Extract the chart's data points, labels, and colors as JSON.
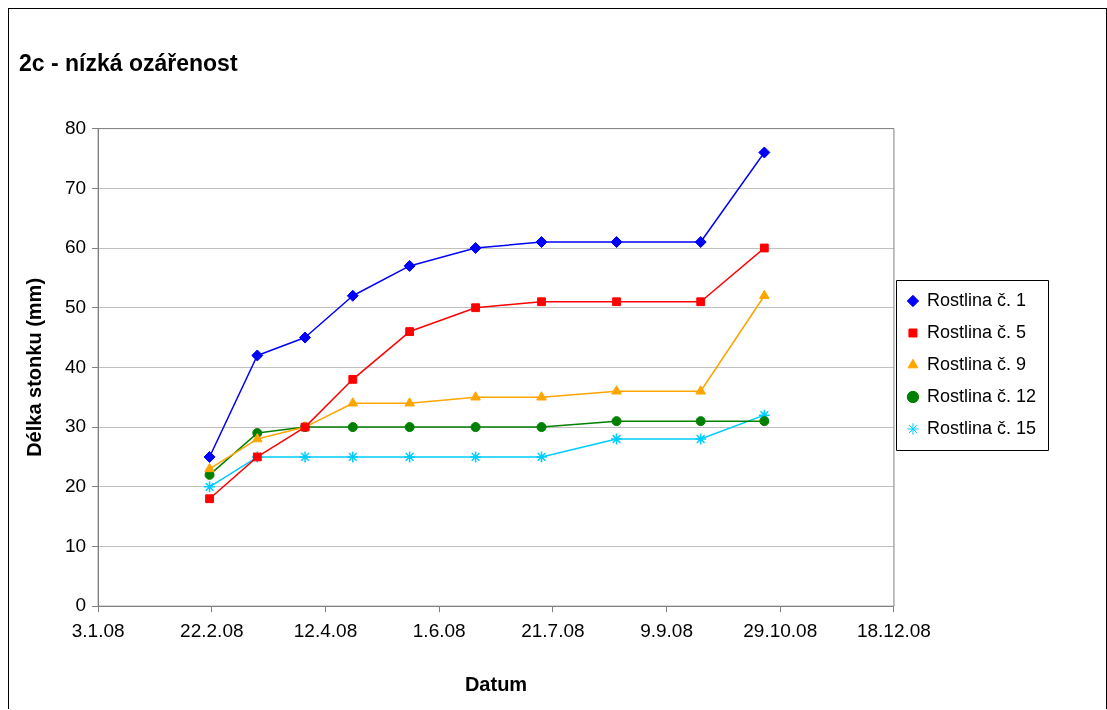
{
  "chart_data": {
    "type": "line",
    "title": "2c - nízká ozářenost",
    "xlabel": "Datum",
    "ylabel": "Délka stonku (mm)",
    "x": [
      "2008-02-21",
      "2008-03-13",
      "2008-04-03",
      "2008-04-24",
      "2008-05-19",
      "2008-06-17",
      "2008-07-16",
      "2008-08-18",
      "2008-09-24",
      "2008-10-22"
    ],
    "series": [
      {
        "name": "Rostlina č. 1",
        "color": "#0000ff",
        "marker": "diamond",
        "values": [
          25,
          42,
          45,
          52,
          57,
          60,
          61,
          61,
          61,
          76
        ]
      },
      {
        "name": "Rostlina č. 5",
        "color": "#ff0000",
        "marker": "square",
        "values": [
          18,
          25,
          30,
          38,
          46,
          50,
          51,
          51,
          51,
          60
        ]
      },
      {
        "name": "Rostlina č. 9",
        "color": "#ffa500",
        "marker": "triangle",
        "values": [
          23,
          28,
          30,
          34,
          34,
          35,
          35,
          36,
          36,
          52
        ]
      },
      {
        "name": "Rostlina č. 12",
        "color": "#008000",
        "marker": "circle",
        "values": [
          22,
          29,
          30,
          30,
          30,
          30,
          30,
          31,
          31,
          31
        ]
      },
      {
        "name": "Rostlina č. 15",
        "color": "#00ccff",
        "marker": "cross",
        "values": [
          20,
          25,
          25,
          25,
          25,
          25,
          25,
          28,
          28,
          32
        ]
      }
    ],
    "xlim": [
      "2008-01-03",
      "2008-12-18"
    ],
    "xticks": [
      {
        "value": "2008-01-03",
        "label": "3.1.08"
      },
      {
        "value": "2008-02-22",
        "label": "22.2.08"
      },
      {
        "value": "2008-04-12",
        "label": "12.4.08"
      },
      {
        "value": "2008-06-01",
        "label": "1.6.08"
      },
      {
        "value": "2008-07-21",
        "label": "21.7.08"
      },
      {
        "value": "2008-09-09",
        "label": "9.9.08"
      },
      {
        "value": "2008-10-29",
        "label": "29.10.08"
      },
      {
        "value": "2008-12-18",
        "label": "18.12.08"
      }
    ],
    "ylim": [
      0,
      80
    ],
    "yticks": [
      0,
      10,
      20,
      30,
      40,
      50,
      60,
      70,
      80
    ],
    "grid": "y",
    "legend": "right",
    "line_style": "solid"
  }
}
